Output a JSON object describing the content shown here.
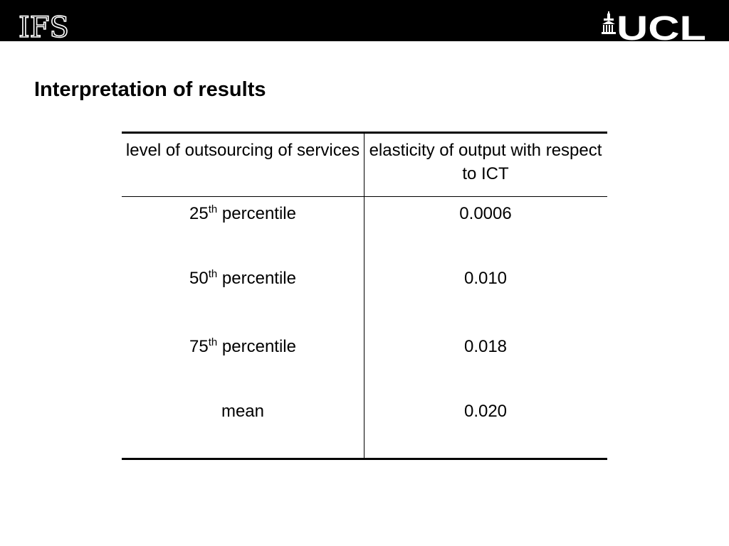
{
  "header": {
    "left_logo": "IFS",
    "right_logo": "UCL",
    "left_logo_icon": "ifs-logo",
    "right_logo_icon": "ucl-portico-logo"
  },
  "slide": {
    "title": "Interpretation of results"
  },
  "table": {
    "headers": [
      "level of outsourcing of services",
      "elasticity of output with respect to ICT"
    ],
    "rows": [
      {
        "number": "25",
        "suffix": "th",
        "label": " percentile",
        "value": "0.0006"
      },
      {
        "number": "50",
        "suffix": "th",
        "label": " percentile",
        "value": "0.010"
      },
      {
        "number": "75",
        "suffix": "th",
        "label": " percentile",
        "value": "0.018"
      },
      {
        "number": "",
        "suffix": "",
        "label": "mean",
        "value": "0.020"
      }
    ]
  }
}
